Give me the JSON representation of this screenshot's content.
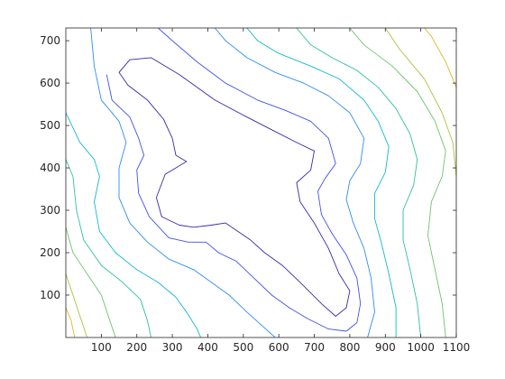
{
  "chart_data": {
    "type": "contour",
    "title": "",
    "xlabel": "",
    "ylabel": "",
    "xlim": [
      0,
      1100
    ],
    "ylim": [
      0,
      730
    ],
    "x_ticks": [
      100,
      200,
      300,
      400,
      500,
      600,
      700,
      800,
      900,
      1000,
      1100
    ],
    "y_ticks": [
      100,
      200,
      300,
      400,
      500,
      600,
      700
    ],
    "grid": false,
    "legend": "none",
    "colormap": "parula",
    "series": [
      {
        "level": 1,
        "color": "#3e26a8",
        "points": [
          [
            175,
            595
          ],
          [
            230,
            560
          ],
          [
            275,
            515
          ],
          [
            300,
            470
          ],
          [
            310,
            430
          ],
          [
            340,
            415
          ],
          [
            280,
            385
          ],
          [
            255,
            330
          ],
          [
            270,
            285
          ],
          [
            320,
            265
          ],
          [
            360,
            260
          ],
          [
            410,
            265
          ],
          [
            450,
            270
          ],
          [
            520,
            230
          ],
          [
            560,
            200
          ],
          [
            610,
            170
          ],
          [
            660,
            130
          ],
          [
            720,
            80
          ],
          [
            760,
            50
          ],
          [
            790,
            70
          ],
          [
            800,
            110
          ],
          [
            770,
            150
          ],
          [
            740,
            210
          ],
          [
            700,
            270
          ],
          [
            660,
            320
          ],
          [
            650,
            365
          ],
          [
            690,
            395
          ],
          [
            700,
            440
          ],
          [
            650,
            460
          ],
          [
            580,
            490
          ],
          [
            510,
            520
          ],
          [
            420,
            560
          ],
          [
            320,
            620
          ],
          [
            240,
            660
          ],
          [
            180,
            655
          ],
          [
            150,
            625
          ],
          [
            175,
            595
          ]
        ]
      },
      {
        "level": 2,
        "color": "#4150ea",
        "points": [
          [
            115,
            620
          ],
          [
            130,
            560
          ],
          [
            180,
            520
          ],
          [
            205,
            470
          ],
          [
            220,
            430
          ],
          [
            200,
            395
          ],
          [
            205,
            340
          ],
          [
            235,
            285
          ],
          [
            290,
            235
          ],
          [
            345,
            225
          ],
          [
            395,
            225
          ],
          [
            430,
            200
          ],
          [
            480,
            180
          ],
          [
            530,
            140
          ],
          [
            580,
            100
          ],
          [
            630,
            70
          ],
          [
            680,
            45
          ],
          [
            740,
            20
          ],
          [
            790,
            15
          ],
          [
            820,
            35
          ],
          [
            830,
            80
          ],
          [
            820,
            140
          ],
          [
            790,
            195
          ],
          [
            750,
            245
          ],
          [
            720,
            290
          ],
          [
            710,
            345
          ],
          [
            730,
            375
          ],
          [
            760,
            410
          ],
          [
            740,
            470
          ],
          [
            690,
            510
          ],
          [
            620,
            535
          ],
          [
            540,
            560
          ],
          [
            450,
            600
          ],
          [
            370,
            650
          ],
          [
            300,
            700
          ],
          [
            260,
            730
          ]
        ]
      },
      {
        "level": 3,
        "color": "#2f8cf4",
        "points": [
          [
            70,
            730
          ],
          [
            80,
            640
          ],
          [
            100,
            560
          ],
          [
            150,
            510
          ],
          [
            170,
            460
          ],
          [
            150,
            400
          ],
          [
            150,
            330
          ],
          [
            180,
            270
          ],
          [
            230,
            225
          ],
          [
            290,
            185
          ],
          [
            360,
            160
          ],
          [
            410,
            130
          ],
          [
            460,
            100
          ],
          [
            510,
            60
          ],
          [
            550,
            30
          ],
          [
            590,
            0
          ]
        ]
      },
      {
        "level": 3,
        "color": "#2f8cf4",
        "points": [
          [
            850,
            0
          ],
          [
            870,
            60
          ],
          [
            860,
            140
          ],
          [
            840,
            210
          ],
          [
            810,
            270
          ],
          [
            790,
            325
          ],
          [
            800,
            370
          ],
          [
            830,
            410
          ],
          [
            840,
            470
          ],
          [
            800,
            530
          ],
          [
            740,
            570
          ],
          [
            670,
            600
          ],
          [
            590,
            625
          ],
          [
            510,
            660
          ],
          [
            450,
            700
          ],
          [
            420,
            730
          ]
        ]
      },
      {
        "level": 4,
        "color": "#13b7d4",
        "points": [
          [
            0,
            530
          ],
          [
            40,
            460
          ],
          [
            80,
            420
          ],
          [
            95,
            380
          ],
          [
            80,
            320
          ],
          [
            95,
            250
          ],
          [
            140,
            200
          ],
          [
            200,
            160
          ],
          [
            260,
            130
          ],
          [
            310,
            95
          ],
          [
            340,
            60
          ],
          [
            370,
            20
          ],
          [
            380,
            0
          ]
        ]
      },
      {
        "level": 4,
        "color": "#13b7d4",
        "points": [
          [
            930,
            0
          ],
          [
            930,
            70
          ],
          [
            910,
            150
          ],
          [
            890,
            220
          ],
          [
            870,
            280
          ],
          [
            870,
            340
          ],
          [
            900,
            390
          ],
          [
            910,
            450
          ],
          [
            880,
            510
          ],
          [
            840,
            560
          ],
          [
            770,
            610
          ],
          [
            690,
            640
          ],
          [
            600,
            670
          ],
          [
            540,
            700
          ],
          [
            510,
            730
          ]
        ]
      },
      {
        "level": 5,
        "color": "#2fc09e",
        "points": [
          [
            0,
            420
          ],
          [
            20,
            380
          ],
          [
            30,
            300
          ],
          [
            50,
            230
          ],
          [
            100,
            170
          ],
          [
            160,
            130
          ],
          [
            210,
            90
          ],
          [
            230,
            40
          ],
          [
            240,
            0
          ]
        ]
      },
      {
        "level": 5,
        "color": "#2fc09e",
        "points": [
          [
            1000,
            0
          ],
          [
            990,
            80
          ],
          [
            970,
            160
          ],
          [
            950,
            230
          ],
          [
            950,
            300
          ],
          [
            980,
            360
          ],
          [
            990,
            420
          ],
          [
            970,
            480
          ],
          [
            930,
            540
          ],
          [
            880,
            590
          ],
          [
            820,
            630
          ],
          [
            750,
            660
          ],
          [
            690,
            690
          ],
          [
            650,
            730
          ]
        ]
      },
      {
        "level": 6,
        "color": "#6cc46a",
        "points": [
          [
            0,
            260
          ],
          [
            20,
            200
          ],
          [
            60,
            150
          ],
          [
            100,
            100
          ],
          [
            120,
            50
          ],
          [
            140,
            0
          ]
        ]
      },
      {
        "level": 6,
        "color": "#6cc46a",
        "points": [
          [
            1070,
            0
          ],
          [
            1060,
            80
          ],
          [
            1040,
            160
          ],
          [
            1020,
            240
          ],
          [
            1030,
            320
          ],
          [
            1060,
            380
          ],
          [
            1070,
            440
          ],
          [
            1040,
            510
          ],
          [
            990,
            580
          ],
          [
            920,
            640
          ],
          [
            840,
            690
          ],
          [
            800,
            730
          ]
        ]
      },
      {
        "level": 7,
        "color": "#aec13a",
        "points": [
          [
            0,
            150
          ],
          [
            20,
            100
          ],
          [
            40,
            50
          ],
          [
            60,
            0
          ]
        ]
      },
      {
        "level": 7,
        "color": "#aec13a",
        "points": [
          [
            1100,
            380
          ],
          [
            1090,
            460
          ],
          [
            1060,
            530
          ],
          [
            1010,
            610
          ],
          [
            940,
            680
          ],
          [
            900,
            730
          ]
        ]
      },
      {
        "level": 8,
        "color": "#dcb829",
        "points": [
          [
            0,
            70
          ],
          [
            15,
            40
          ],
          [
            25,
            0
          ]
        ]
      },
      {
        "level": 8,
        "color": "#dcb829",
        "points": [
          [
            1100,
            590
          ],
          [
            1070,
            650
          ],
          [
            1030,
            710
          ],
          [
            1010,
            730
          ]
        ]
      }
    ]
  }
}
